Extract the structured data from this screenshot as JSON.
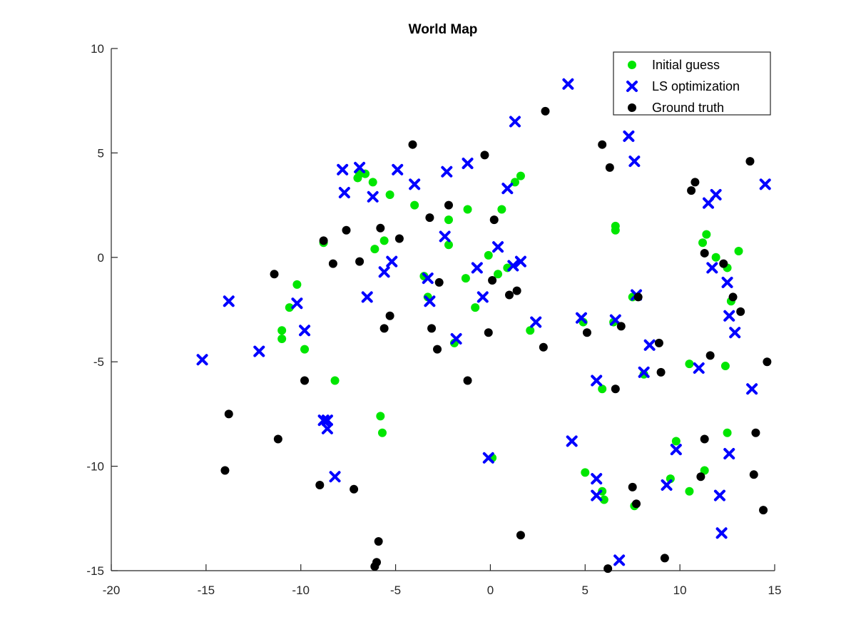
{
  "chart_data": {
    "type": "scatter",
    "title": "World Map",
    "xlabel": "",
    "ylabel": "",
    "xlim": [
      -20,
      15
    ],
    "ylim": [
      -15,
      10
    ],
    "xticks": [
      -20,
      -15,
      -10,
      -5,
      0,
      5,
      10,
      15
    ],
    "yticks": [
      -15,
      -10,
      -5,
      0,
      5,
      10
    ],
    "grid": false,
    "legend_position": "top-right",
    "series": [
      {
        "name": "Initial guess",
        "marker": "circle",
        "color": "#00e600",
        "points": [
          [
            -8.8,
            0.7
          ],
          [
            -10.2,
            -1.3
          ],
          [
            -10.6,
            -2.4
          ],
          [
            -11.0,
            -3.5
          ],
          [
            -11.0,
            -3.9
          ],
          [
            -9.8,
            -4.4
          ],
          [
            -8.2,
            -5.9
          ],
          [
            -7.0,
            3.8
          ],
          [
            -6.9,
            4.0
          ],
          [
            -6.6,
            4.0
          ],
          [
            -6.2,
            3.6
          ],
          [
            -5.3,
            3.0
          ],
          [
            -6.1,
            0.4
          ],
          [
            -5.6,
            0.8
          ],
          [
            -4.0,
            2.5
          ],
          [
            -3.5,
            -0.9
          ],
          [
            -3.3,
            -1.9
          ],
          [
            -2.2,
            1.8
          ],
          [
            -2.2,
            0.6
          ],
          [
            -1.2,
            2.3
          ],
          [
            -1.3,
            -1.0
          ],
          [
            -0.8,
            -2.4
          ],
          [
            -0.1,
            0.1
          ],
          [
            0.4,
            -0.8
          ],
          [
            0.6,
            2.3
          ],
          [
            0.9,
            -0.5
          ],
          [
            1.3,
            3.6
          ],
          [
            1.6,
            3.9
          ],
          [
            0.1,
            -9.6
          ],
          [
            -5.8,
            -7.6
          ],
          [
            -5.7,
            -8.4
          ],
          [
            -1.9,
            -4.1
          ],
          [
            2.1,
            -3.5
          ],
          [
            4.9,
            -3.1
          ],
          [
            5.9,
            -6.3
          ],
          [
            6.6,
            1.5
          ],
          [
            6.6,
            1.3
          ],
          [
            6.5,
            -3.1
          ],
          [
            7.5,
            -1.9
          ],
          [
            8.1,
            -5.6
          ],
          [
            5.0,
            -10.3
          ],
          [
            5.9,
            -11.2
          ],
          [
            6.0,
            -11.6
          ],
          [
            7.6,
            -11.9
          ],
          [
            9.5,
            -10.6
          ],
          [
            9.8,
            -8.8
          ],
          [
            10.5,
            -11.2
          ],
          [
            11.3,
            -10.2
          ],
          [
            10.5,
            -5.1
          ],
          [
            11.2,
            0.7
          ],
          [
            11.4,
            1.1
          ],
          [
            11.9,
            0.0
          ],
          [
            12.5,
            -0.5
          ],
          [
            13.1,
            0.3
          ],
          [
            12.7,
            -2.1
          ],
          [
            12.4,
            -5.2
          ],
          [
            12.5,
            -8.4
          ]
        ]
      },
      {
        "name": "LS optimization",
        "marker": "x",
        "color": "#0000ff",
        "points": [
          [
            -15.2,
            -4.9
          ],
          [
            -13.8,
            -2.1
          ],
          [
            -12.2,
            -4.5
          ],
          [
            -10.2,
            -2.2
          ],
          [
            -9.8,
            -3.5
          ],
          [
            -8.8,
            -7.8
          ],
          [
            -8.6,
            -7.8
          ],
          [
            -8.6,
            -8.2
          ],
          [
            -8.2,
            -10.5
          ],
          [
            -7.8,
            4.2
          ],
          [
            -7.7,
            3.1
          ],
          [
            -6.9,
            4.3
          ],
          [
            -6.5,
            -1.9
          ],
          [
            -6.2,
            2.9
          ],
          [
            -5.6,
            -0.7
          ],
          [
            -5.2,
            -0.2
          ],
          [
            -4.9,
            4.2
          ],
          [
            -4.0,
            3.5
          ],
          [
            -3.3,
            -1.0
          ],
          [
            -3.2,
            -2.1
          ],
          [
            -2.4,
            1.0
          ],
          [
            -2.3,
            4.1
          ],
          [
            -1.8,
            -3.9
          ],
          [
            -1.2,
            4.5
          ],
          [
            -0.7,
            -0.5
          ],
          [
            -0.4,
            -1.9
          ],
          [
            -0.1,
            -9.6
          ],
          [
            0.4,
            0.5
          ],
          [
            0.9,
            3.3
          ],
          [
            1.2,
            -0.4
          ],
          [
            1.6,
            -0.2
          ],
          [
            1.3,
            6.5
          ],
          [
            2.4,
            -3.1
          ],
          [
            4.1,
            8.3
          ],
          [
            4.3,
            -8.8
          ],
          [
            4.8,
            -2.9
          ],
          [
            5.6,
            -5.9
          ],
          [
            5.6,
            -10.6
          ],
          [
            5.6,
            -11.4
          ],
          [
            6.6,
            -3.0
          ],
          [
            6.8,
            -14.5
          ],
          [
            7.3,
            5.8
          ],
          [
            7.6,
            4.6
          ],
          [
            7.7,
            -1.8
          ],
          [
            8.1,
            -5.5
          ],
          [
            8.4,
            -4.2
          ],
          [
            9.3,
            -10.9
          ],
          [
            9.8,
            -9.2
          ],
          [
            11.0,
            -5.3
          ],
          [
            11.5,
            2.6
          ],
          [
            11.7,
            -0.5
          ],
          [
            11.9,
            3.0
          ],
          [
            12.1,
            -11.4
          ],
          [
            12.2,
            -13.2
          ],
          [
            12.5,
            -1.2
          ],
          [
            12.6,
            -2.8
          ],
          [
            12.6,
            -9.4
          ],
          [
            12.9,
            -3.6
          ],
          [
            13.8,
            -6.3
          ],
          [
            14.5,
            3.5
          ]
        ]
      },
      {
        "name": "Ground truth",
        "marker": "circle",
        "color": "#000000",
        "points": [
          [
            -14.0,
            -10.2
          ],
          [
            -13.8,
            -7.5
          ],
          [
            -11.4,
            -0.8
          ],
          [
            -11.2,
            -8.7
          ],
          [
            -9.8,
            -5.9
          ],
          [
            -9.0,
            -10.9
          ],
          [
            -8.8,
            0.8
          ],
          [
            -8.3,
            -0.3
          ],
          [
            -7.6,
            1.3
          ],
          [
            -7.2,
            -11.1
          ],
          [
            -6.9,
            -0.2
          ],
          [
            -6.1,
            -14.8
          ],
          [
            -6.0,
            -14.6
          ],
          [
            -5.9,
            -13.6
          ],
          [
            -5.8,
            1.4
          ],
          [
            -5.6,
            -3.4
          ],
          [
            -5.3,
            -2.8
          ],
          [
            -4.8,
            0.9
          ],
          [
            -4.1,
            5.4
          ],
          [
            -3.2,
            1.9
          ],
          [
            -3.1,
            -3.4
          ],
          [
            -2.8,
            -4.4
          ],
          [
            -2.7,
            -1.2
          ],
          [
            -2.2,
            2.5
          ],
          [
            -1.2,
            -5.9
          ],
          [
            -0.3,
            4.9
          ],
          [
            -0.1,
            -3.6
          ],
          [
            0.1,
            -1.1
          ],
          [
            0.2,
            1.8
          ],
          [
            1.0,
            -1.8
          ],
          [
            1.4,
            -1.6
          ],
          [
            1.6,
            -13.3
          ],
          [
            2.8,
            -4.3
          ],
          [
            2.9,
            7.0
          ],
          [
            5.1,
            -3.6
          ],
          [
            5.9,
            5.4
          ],
          [
            6.2,
            -14.9
          ],
          [
            6.3,
            4.3
          ],
          [
            6.6,
            -6.3
          ],
          [
            6.9,
            -3.3
          ],
          [
            7.5,
            -11.0
          ],
          [
            7.7,
            -11.8
          ],
          [
            7.8,
            -1.9
          ],
          [
            8.9,
            -4.1
          ],
          [
            9.0,
            -5.5
          ],
          [
            9.2,
            -14.4
          ],
          [
            10.6,
            3.2
          ],
          [
            10.8,
            3.6
          ],
          [
            11.1,
            -10.5
          ],
          [
            11.3,
            0.2
          ],
          [
            11.3,
            -8.7
          ],
          [
            11.6,
            -4.7
          ],
          [
            12.3,
            -0.3
          ],
          [
            12.8,
            -1.9
          ],
          [
            13.2,
            -2.6
          ],
          [
            13.7,
            4.6
          ],
          [
            13.9,
            -10.4
          ],
          [
            14.0,
            -8.4
          ],
          [
            14.4,
            -12.1
          ],
          [
            14.6,
            -5.0
          ]
        ]
      }
    ]
  }
}
